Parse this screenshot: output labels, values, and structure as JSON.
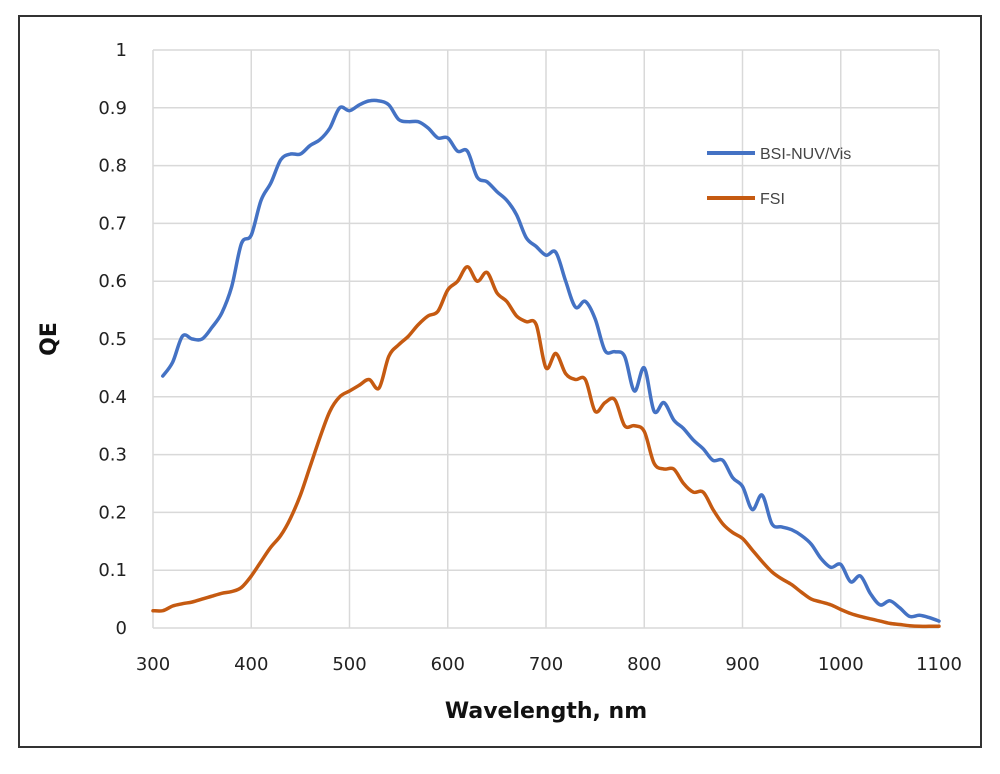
{
  "chart_data": {
    "type": "line",
    "title": "",
    "xlabel": "Wavelength, nm",
    "ylabel": "QE",
    "xlim": [
      300,
      1100
    ],
    "ylim": [
      0,
      1
    ],
    "xticks": [
      "300",
      "400",
      "500",
      "600",
      "700",
      "800",
      "900",
      "1000",
      "1100"
    ],
    "yticks": [
      "0",
      "0.1",
      "0.2",
      "0.3",
      "0.4",
      "0.5",
      "0.6",
      "0.7",
      "0.8",
      "0.9",
      "1"
    ],
    "grid": true,
    "legend_position": "top-right",
    "series": [
      {
        "name": "BSI-NUV/Vis",
        "color": "#4472C4",
        "x": [
          310,
          320,
          330,
          340,
          350,
          360,
          370,
          380,
          390,
          400,
          410,
          420,
          430,
          440,
          450,
          460,
          470,
          480,
          490,
          500,
          510,
          520,
          530,
          540,
          550,
          560,
          570,
          580,
          590,
          600,
          610,
          620,
          630,
          640,
          650,
          660,
          670,
          680,
          690,
          700,
          710,
          720,
          730,
          740,
          750,
          760,
          770,
          780,
          790,
          800,
          810,
          820,
          830,
          840,
          850,
          860,
          870,
          880,
          890,
          900,
          910,
          920,
          930,
          940,
          950,
          960,
          970,
          980,
          990,
          1000,
          1010,
          1020,
          1030,
          1040,
          1050,
          1060,
          1070,
          1080,
          1090,
          1100
        ],
        "y": [
          0.436,
          0.46,
          0.505,
          0.5,
          0.5,
          0.52,
          0.545,
          0.59,
          0.665,
          0.68,
          0.74,
          0.77,
          0.81,
          0.82,
          0.82,
          0.835,
          0.845,
          0.865,
          0.9,
          0.895,
          0.905,
          0.912,
          0.912,
          0.905,
          0.88,
          0.876,
          0.876,
          0.865,
          0.848,
          0.848,
          0.825,
          0.825,
          0.78,
          0.772,
          0.755,
          0.74,
          0.715,
          0.675,
          0.66,
          0.645,
          0.65,
          0.6,
          0.555,
          0.565,
          0.535,
          0.48,
          0.478,
          0.47,
          0.41,
          0.45,
          0.375,
          0.39,
          0.36,
          0.345,
          0.325,
          0.31,
          0.29,
          0.29,
          0.26,
          0.245,
          0.205,
          0.23,
          0.18,
          0.175,
          0.17,
          0.16,
          0.145,
          0.12,
          0.105,
          0.11,
          0.08,
          0.09,
          0.06,
          0.04,
          0.047,
          0.035,
          0.02,
          0.022,
          0.018,
          0.012
        ]
      },
      {
        "name": "FSI",
        "color": "#C55A11",
        "x": [
          300,
          310,
          320,
          330,
          340,
          350,
          360,
          370,
          380,
          390,
          400,
          410,
          420,
          430,
          440,
          450,
          460,
          470,
          480,
          490,
          500,
          510,
          520,
          530,
          540,
          550,
          560,
          570,
          580,
          590,
          600,
          610,
          620,
          630,
          640,
          650,
          660,
          670,
          680,
          690,
          700,
          710,
          720,
          730,
          740,
          750,
          760,
          770,
          780,
          790,
          800,
          810,
          820,
          830,
          840,
          850,
          860,
          870,
          880,
          890,
          900,
          910,
          920,
          930,
          940,
          950,
          960,
          970,
          980,
          990,
          1000,
          1010,
          1020,
          1030,
          1040,
          1050,
          1060,
          1070,
          1080,
          1090,
          1100
        ],
        "y": [
          0.03,
          0.03,
          0.038,
          0.042,
          0.045,
          0.05,
          0.055,
          0.06,
          0.063,
          0.07,
          0.09,
          0.115,
          0.14,
          0.16,
          0.19,
          0.23,
          0.28,
          0.33,
          0.375,
          0.4,
          0.41,
          0.42,
          0.43,
          0.415,
          0.47,
          0.49,
          0.505,
          0.525,
          0.54,
          0.548,
          0.585,
          0.6,
          0.625,
          0.6,
          0.615,
          0.58,
          0.565,
          0.54,
          0.53,
          0.525,
          0.45,
          0.475,
          0.44,
          0.43,
          0.43,
          0.375,
          0.39,
          0.395,
          0.35,
          0.35,
          0.34,
          0.285,
          0.275,
          0.275,
          0.25,
          0.235,
          0.235,
          0.205,
          0.18,
          0.165,
          0.155,
          0.135,
          0.115,
          0.097,
          0.085,
          0.075,
          0.062,
          0.05,
          0.045,
          0.04,
          0.032,
          0.025,
          0.02,
          0.016,
          0.012,
          0.008,
          0.006,
          0.004,
          0.003,
          0.003,
          0.003
        ]
      }
    ]
  }
}
